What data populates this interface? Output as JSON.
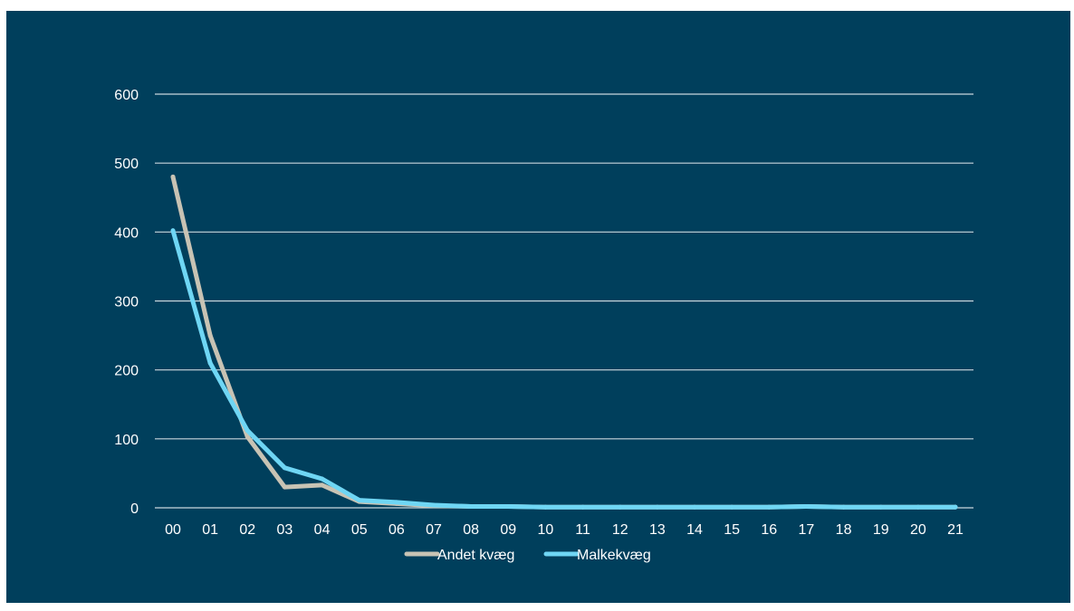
{
  "chart_data": {
    "type": "line",
    "title": "",
    "xlabel": "",
    "ylabel": "",
    "categories": [
      "00",
      "01",
      "02",
      "03",
      "04",
      "05",
      "06",
      "07",
      "08",
      "09",
      "10",
      "11",
      "12",
      "13",
      "14",
      "15",
      "16",
      "17",
      "18",
      "19",
      "20",
      "21"
    ],
    "ylim": [
      0,
      600
    ],
    "yticks": [
      0,
      100,
      200,
      300,
      400,
      500,
      600
    ],
    "grid": true,
    "legend_position": "bottom",
    "background_color": "#003f5c",
    "series": [
      {
        "name": "Andet kvæg",
        "color": "#c8c3b4",
        "values": [
          480,
          250,
          103,
          30,
          33,
          9,
          6,
          3,
          2,
          2,
          1,
          1,
          1,
          1,
          1,
          1,
          1,
          2,
          1,
          1,
          1,
          1
        ]
      },
      {
        "name": "Malkekvæg",
        "color": "#6fd6f4",
        "values": [
          402,
          210,
          112,
          58,
          42,
          11,
          8,
          4,
          2,
          2,
          1,
          1,
          1,
          1,
          1,
          1,
          1,
          2,
          1,
          1,
          1,
          1
        ]
      }
    ]
  }
}
